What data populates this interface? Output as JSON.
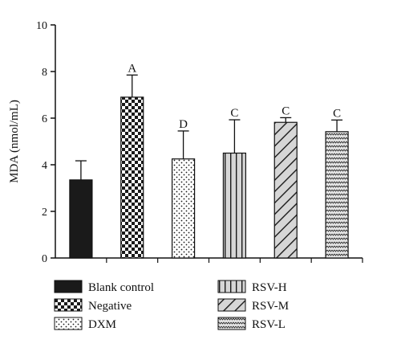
{
  "chart_data": {
    "type": "bar",
    "title": "",
    "xlabel": "",
    "ylabel": "MDA (nmol/mL)",
    "ylim": [
      0,
      10
    ],
    "yticks": [
      0,
      2,
      4,
      6,
      8,
      10
    ],
    "grid": false,
    "legend_position": "bottom",
    "categories": [
      "Blank control",
      "Negative",
      "DXM",
      "RSV-H",
      "RSV-M",
      "RSV-L"
    ],
    "values": [
      3.35,
      6.9,
      4.25,
      4.5,
      5.82,
      5.42
    ],
    "error_upper": [
      0.82,
      0.95,
      1.2,
      1.43,
      0.2,
      0.5
    ],
    "significance_labels": [
      "",
      "A",
      "D",
      "C",
      "C",
      "C"
    ],
    "patterns": [
      "solid",
      "checker",
      "dots",
      "vertical-lines",
      "diagonal-lines",
      "waves"
    ],
    "colors": {
      "bar_fill": "#1a1a1a",
      "axis": "#111111",
      "background": "#ffffff"
    }
  }
}
